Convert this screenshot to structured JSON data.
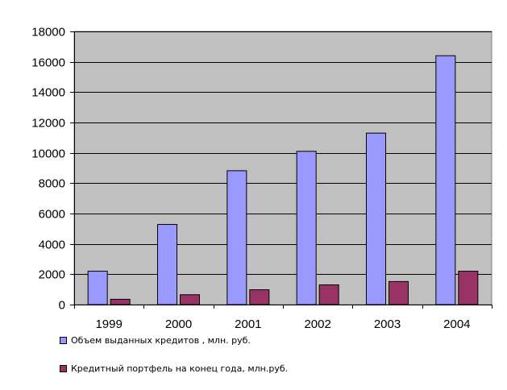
{
  "chart_data": {
    "type": "bar",
    "categories": [
      "1999",
      "2000",
      "2001",
      "2002",
      "2003",
      "2004"
    ],
    "series": [
      {
        "name": "Объем выданных кредитов , млн. руб.",
        "color": "#9999ff",
        "values": [
          2200,
          5280,
          8820,
          10100,
          11300,
          16400
        ]
      },
      {
        "name": "Кредитный портфель на конец года, млн.руб.",
        "color": "#993366",
        "values": [
          350,
          650,
          980,
          1300,
          1520,
          2200
        ]
      }
    ],
    "ylim": [
      0,
      18000
    ],
    "yticks": [
      "0",
      "2000",
      "4000",
      "6000",
      "8000",
      "10000",
      "12000",
      "14000",
      "16000",
      "18000"
    ],
    "grid": true,
    "plot_background": "#c0c0c0",
    "legend_position": "bottom-left"
  }
}
